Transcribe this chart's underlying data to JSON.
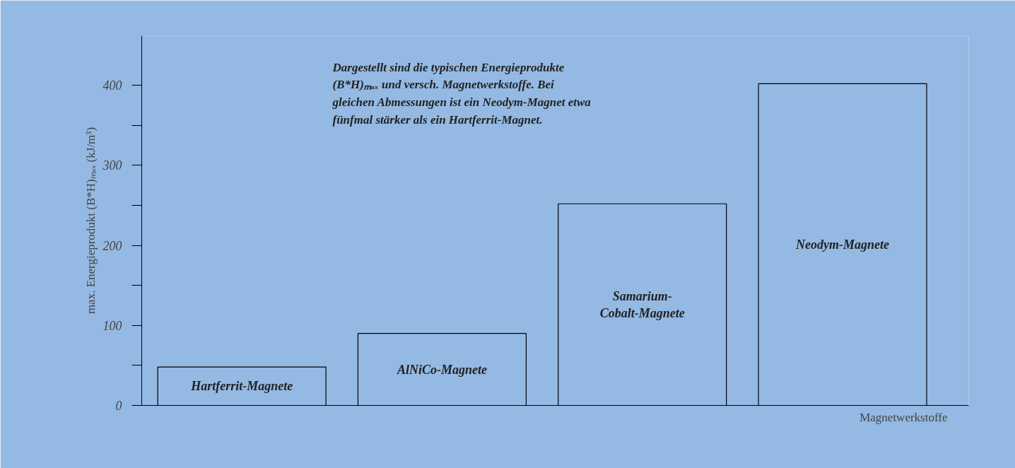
{
  "chart_data": {
    "type": "bar",
    "categories": [
      "Hartferrit-Magnete",
      "AlNiCo-Magnete",
      "Samarium-Cobalt-Magnete",
      "Neodym-Magnete"
    ],
    "values": [
      48,
      90,
      252,
      402
    ],
    "color": "#94b9e3",
    "ylabel": "max. Energieprodukt (B*H)ₘₐₓ (kJ/m³)",
    "xlabel": "Magnetwerkstoffe",
    "ylim": [
      0,
      462
    ],
    "yticks": [
      0,
      {
        "value": 50,
        "label": null
      },
      100,
      {
        "value": 150,
        "label": null
      },
      200,
      {
        "value": 250,
        "label": null
      },
      300,
      {
        "value": 350,
        "label": null
      },
      400
    ],
    "annotations": [
      "Dargestellt sind die typischen Energieprodukte (B*H)ₘₐₓ und versch. Magnetwerkstoffe. Bei gleichen Abmessungen ist ein Neodym-Magnet etwa fünfmal stärker als ein Hartferrit-Magnet."
    ],
    "grid": false
  }
}
